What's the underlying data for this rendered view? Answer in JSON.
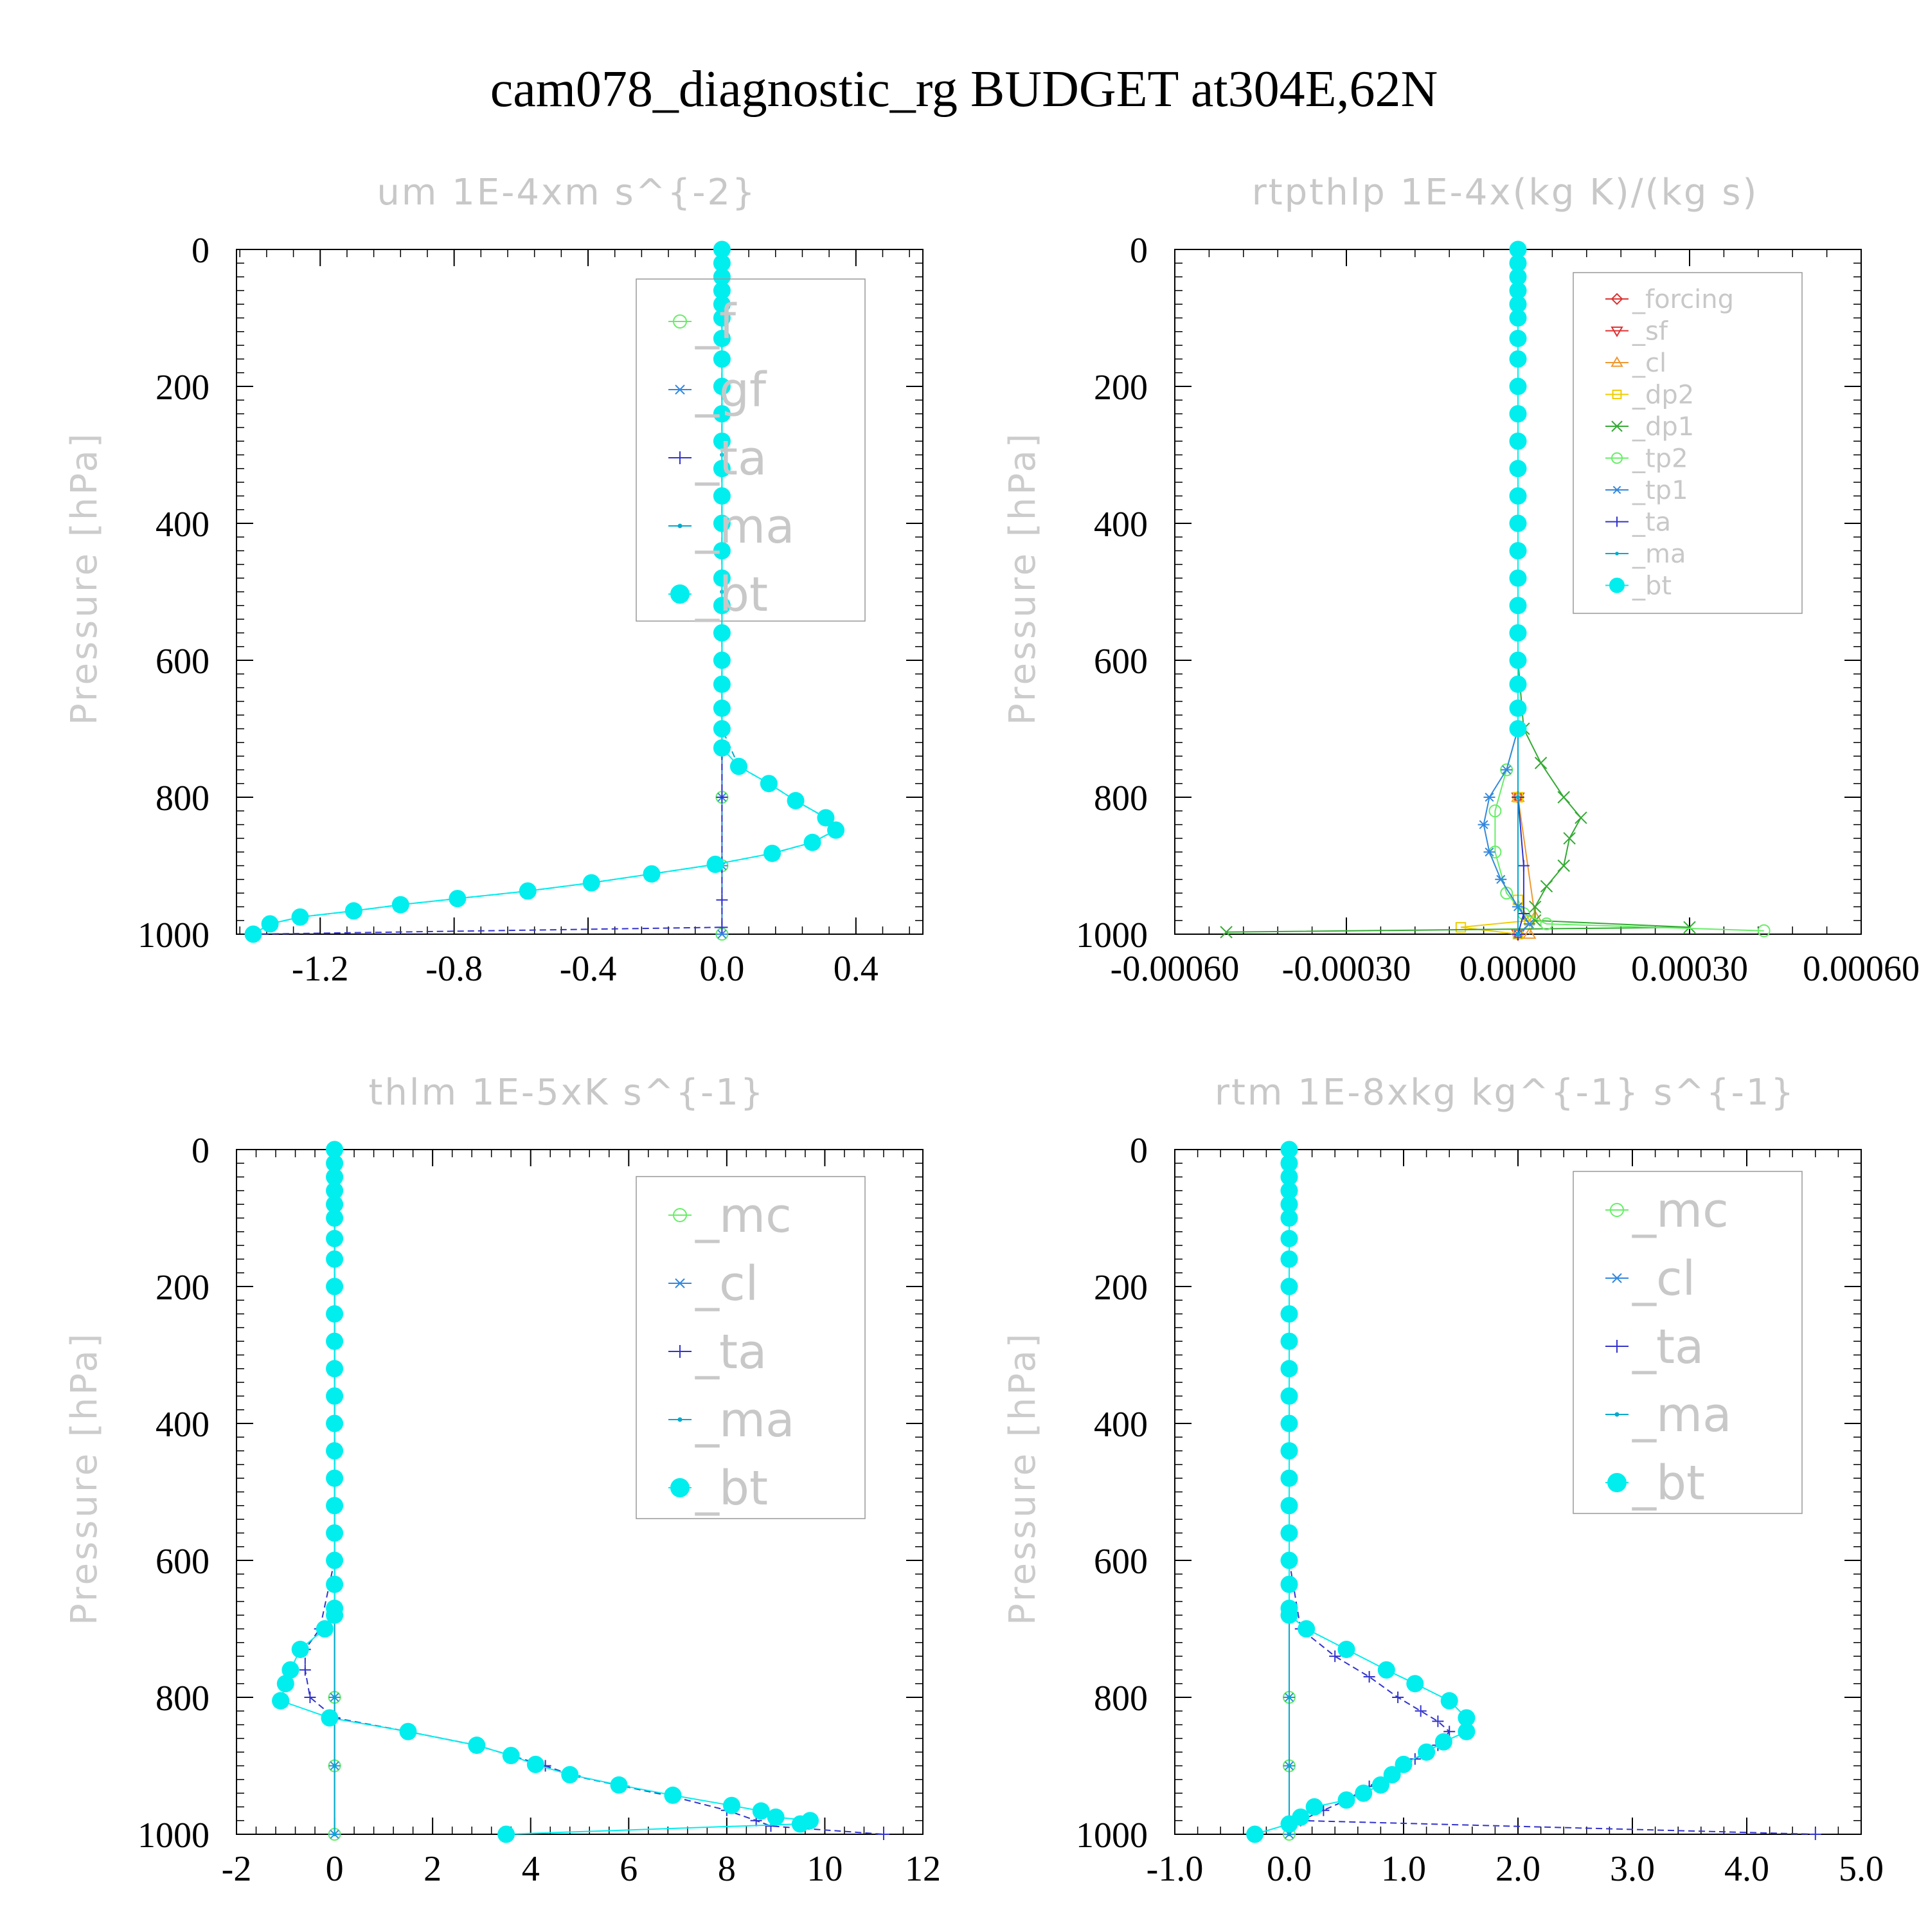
{
  "figure_title": "cam078_diagnostic_rg  BUDGET at304E,62N",
  "chart_data": [
    {
      "type": "line",
      "title": "um   1E-4xm s^{-2}",
      "ylabel": "Pressure [hPa]",
      "xlabel": "",
      "xlim": [
        -1.45,
        0.6
      ],
      "ylim": [
        0,
        1000
      ],
      "y_inverted": true,
      "xticks": [
        -1.2,
        -0.8,
        -0.4,
        0.0,
        0.4
      ],
      "xtick_labels": [
        "-1.2",
        "-0.8",
        "-0.4",
        "0.0",
        "0.4"
      ],
      "yticks": [
        0,
        200,
        400,
        600,
        800,
        1000
      ],
      "legend_position": "top-right",
      "series": [
        {
          "name": "_f",
          "color": "#66ee66",
          "marker": "circle-open",
          "x": [
            0,
            0,
            0,
            0,
            0,
            0,
            0
          ],
          "y": [
            0,
            200,
            400,
            600,
            800,
            900,
            1000
          ]
        },
        {
          "name": "_gf",
          "color": "#3388dd",
          "marker": "asterisk",
          "x": [
            0,
            0,
            0,
            0,
            0,
            0,
            0
          ],
          "y": [
            0,
            200,
            400,
            600,
            800,
            900,
            1000
          ]
        },
        {
          "name": "_ta",
          "color": "#3333cc",
          "marker": "plus",
          "dash": true,
          "x": [
            0,
            0,
            0,
            0,
            0,
            -1.4
          ],
          "y": [
            0,
            400,
            800,
            950,
            990,
            1000
          ]
        },
        {
          "name": "_ma",
          "color": "#00aacc",
          "marker": "dot",
          "dash": true,
          "x": [
            0,
            0,
            0,
            0,
            0,
            0,
            0,
            0,
            0.05,
            0.14,
            0.22,
            0.31,
            0.34,
            0.27,
            0.15,
            -0.02,
            -0.21,
            -0.39,
            -0.58,
            -0.79,
            -0.96,
            -1.1,
            -1.26,
            -1.35,
            -1.4
          ],
          "y": [
            0,
            100,
            200,
            300,
            400,
            500,
            600,
            700,
            755,
            780,
            805,
            830,
            848,
            866,
            882,
            898,
            912,
            925,
            937,
            948,
            957,
            966,
            975,
            985,
            1000
          ]
        },
        {
          "name": "_bt",
          "color": "#00eeee",
          "marker": "filled-circle",
          "x": [
            0,
            0,
            0,
            0,
            0,
            0,
            0,
            0,
            0,
            0,
            0,
            0,
            0,
            0,
            0,
            0,
            0,
            0,
            0,
            0,
            0,
            0,
            0,
            0.05,
            0.14,
            0.22,
            0.31,
            0.34,
            0.27,
            0.15,
            -0.02,
            -0.21,
            -0.39,
            -0.58,
            -0.79,
            -0.96,
            -1.1,
            -1.26,
            -1.35,
            -1.4
          ],
          "y": [
            0,
            20,
            40,
            60,
            80,
            100,
            130,
            160,
            200,
            240,
            280,
            320,
            360,
            400,
            440,
            480,
            520,
            560,
            600,
            635,
            670,
            700,
            728,
            755,
            780,
            805,
            830,
            848,
            866,
            882,
            898,
            912,
            925,
            937,
            948,
            957,
            966,
            975,
            985,
            1000
          ]
        }
      ]
    },
    {
      "type": "line",
      "title": "rtpthlp   1E-4x(kg K)/(kg s)",
      "ylabel": "Pressure [hPa]",
      "xlabel": "",
      "xlim": [
        -0.0006,
        0.0006
      ],
      "ylim": [
        0,
        1000
      ],
      "y_inverted": true,
      "xticks": [
        -0.0006,
        -0.0003,
        0.0,
        0.0003,
        0.0006
      ],
      "xtick_labels": [
        "-0.00060",
        "-0.00030",
        "0.00000",
        "0.00030",
        "0.00060"
      ],
      "yticks": [
        0,
        200,
        400,
        600,
        800,
        1000
      ],
      "legend_position": "top-right",
      "series": [
        {
          "name": "_forcing",
          "color": "#dd3333",
          "marker": "diamond-open",
          "x": [
            0,
            0,
            0,
            0,
            0,
            0
          ],
          "y": [
            0,
            200,
            400,
            600,
            800,
            1000
          ]
        },
        {
          "name": "_sf",
          "color": "#dd3333",
          "marker": "triangle-down-open",
          "x": [
            0,
            0,
            0,
            0,
            0,
            0
          ],
          "y": [
            0,
            200,
            400,
            600,
            800,
            1000
          ]
        },
        {
          "name": "_cl",
          "color": "#ee9933",
          "marker": "triangle-up-open",
          "x": [
            0,
            0,
            0,
            0,
            0,
            3e-05,
            2e-05
          ],
          "y": [
            0,
            200,
            400,
            600,
            800,
            975,
            1000
          ]
        },
        {
          "name": "_dp2",
          "color": "#eecc00",
          "marker": "square-open",
          "x": [
            0,
            0,
            0,
            0,
            2e-05,
            -0.0001,
            0.0
          ],
          "y": [
            0,
            400,
            800,
            950,
            980,
            990,
            1000
          ]
        },
        {
          "name": "_dp1",
          "color": "#33aa33",
          "marker": "x",
          "x": [
            0,
            0,
            0,
            1e-05,
            4e-05,
            8e-05,
            0.00011,
            9e-05,
            8e-05,
            5e-05,
            3e-05,
            3e-05,
            0.0003,
            -0.00051
          ],
          "y": [
            0,
            200,
            600,
            700,
            750,
            800,
            830,
            860,
            900,
            930,
            960,
            980,
            990,
            997
          ]
        },
        {
          "name": "_tp2",
          "color": "#66ee66",
          "marker": "circle-open",
          "x": [
            0,
            0,
            0,
            -2e-05,
            -4e-05,
            -4e-05,
            -2e-05,
            1e-05,
            5e-05,
            0.00043
          ],
          "y": [
            0,
            400,
            700,
            760,
            820,
            880,
            940,
            970,
            985,
            995
          ]
        },
        {
          "name": "_tp1",
          "color": "#3388dd",
          "marker": "asterisk",
          "x": [
            0,
            0,
            0,
            -2e-05,
            -5e-05,
            -6e-05,
            -5e-05,
            -3e-05,
            0.0,
            2e-05,
            0.0
          ],
          "y": [
            0,
            400,
            700,
            760,
            800,
            840,
            880,
            920,
            960,
            985,
            1000
          ]
        },
        {
          "name": "_ta",
          "color": "#3333cc",
          "marker": "plus",
          "x": [
            0,
            0,
            0,
            1e-05,
            1e-05,
            0.0
          ],
          "y": [
            0,
            400,
            800,
            900,
            970,
            1000
          ]
        },
        {
          "name": "_ma",
          "color": "#00aacc",
          "marker": "dot",
          "x": [
            0,
            0,
            0,
            0,
            0,
            0
          ],
          "y": [
            0,
            200,
            400,
            600,
            800,
            1000
          ]
        },
        {
          "name": "_bt",
          "color": "#00eeee",
          "marker": "filled-circle",
          "x": [
            0,
            0,
            0,
            0,
            0,
            0,
            0,
            0,
            0,
            0,
            0,
            0,
            0,
            0,
            0,
            0,
            0,
            0,
            0,
            0,
            0,
            0
          ],
          "y": [
            0,
            20,
            40,
            60,
            80,
            100,
            130,
            160,
            200,
            240,
            280,
            320,
            360,
            400,
            440,
            480,
            520,
            560,
            600,
            635,
            670,
            700
          ]
        }
      ]
    },
    {
      "type": "line",
      "title": "thlm   1E-5xK s^{-1}",
      "ylabel": "Pressure [hPa]",
      "xlabel": "",
      "xlim": [
        -2,
        12
      ],
      "ylim": [
        0,
        1000
      ],
      "y_inverted": true,
      "xticks": [
        -2,
        0,
        2,
        4,
        6,
        8,
        10,
        12
      ],
      "xtick_labels": [
        "-2",
        "0",
        "2",
        "4",
        "6",
        "8",
        "10",
        "12"
      ],
      "yticks": [
        0,
        200,
        400,
        600,
        800,
        1000
      ],
      "legend_position": "top-right",
      "series": [
        {
          "name": "_mc",
          "color": "#66ee66",
          "marker": "circle-open",
          "x": [
            0,
            0,
            0,
            0,
            0,
            0,
            0
          ],
          "y": [
            0,
            200,
            400,
            600,
            800,
            900,
            1000
          ]
        },
        {
          "name": "_cl",
          "color": "#3388dd",
          "marker": "asterisk",
          "x": [
            0,
            0,
            0,
            0,
            0,
            0,
            0
          ],
          "y": [
            0,
            200,
            400,
            600,
            800,
            900,
            1000
          ]
        },
        {
          "name": "_ta",
          "color": "#3333cc",
          "marker": "plus",
          "dash": true,
          "x": [
            0,
            0,
            0,
            0,
            -0.3,
            -0.6,
            -0.6,
            -0.5,
            0.0,
            1.5,
            2.9,
            3.6,
            4.3,
            4.9,
            5.9,
            6.9,
            8.0,
            8.6,
            8.9,
            11.2
          ],
          "y": [
            0,
            200,
            400,
            600,
            700,
            730,
            760,
            800,
            830,
            850,
            870,
            885,
            900,
            915,
            930,
            945,
            965,
            980,
            988,
            1000
          ]
        },
        {
          "name": "_ma",
          "color": "#00aacc",
          "marker": "dot",
          "x": [
            0,
            0,
            0,
            0,
            0,
            0,
            0
          ],
          "y": [
            0,
            200,
            400,
            600,
            800,
            900,
            1000
          ]
        },
        {
          "name": "_bt",
          "color": "#00eeee",
          "marker": "filled-circle",
          "x": [
            0,
            0,
            0,
            0,
            0,
            0,
            0,
            0,
            0,
            0,
            0,
            0,
            0,
            0,
            0,
            0,
            0,
            0,
            0,
            0,
            0,
            0,
            -0.2,
            -0.7,
            -0.9,
            -1.0,
            -1.1,
            -1.1,
            -0.1,
            1.5,
            2.9,
            3.6,
            4.1,
            4.8,
            5.8,
            6.9,
            8.1,
            8.7,
            9.0,
            9.7,
            9.5,
            3.5
          ],
          "y": [
            0,
            20,
            40,
            60,
            80,
            100,
            130,
            160,
            200,
            240,
            280,
            320,
            360,
            400,
            440,
            480,
            520,
            560,
            600,
            635,
            670,
            680,
            700,
            730,
            760,
            780,
            805,
            805,
            830,
            850,
            870,
            885,
            898,
            913,
            928,
            943,
            958,
            966,
            975,
            980,
            985,
            1000
          ]
        }
      ]
    },
    {
      "type": "line",
      "title": "rtm   1E-8xkg kg^{-1} s^{-1}",
      "ylabel": "Pressure [hPa]",
      "xlabel": "",
      "xlim": [
        -1.0,
        5.0
      ],
      "ylim": [
        0,
        1000
      ],
      "y_inverted": true,
      "xticks": [
        -1.0,
        0.0,
        1.0,
        2.0,
        3.0,
        4.0,
        5.0
      ],
      "xtick_labels": [
        "-1.0",
        "0.0",
        "1.0",
        "2.0",
        "3.0",
        "4.0",
        "5.0"
      ],
      "yticks": [
        0,
        200,
        400,
        600,
        800,
        1000
      ],
      "legend_position": "top-right",
      "series": [
        {
          "name": "_mc",
          "color": "#66ee66",
          "marker": "circle-open",
          "x": [
            0,
            0,
            0,
            0,
            0,
            0,
            0
          ],
          "y": [
            0,
            200,
            400,
            600,
            800,
            900,
            1000
          ]
        },
        {
          "name": "_cl",
          "color": "#3388dd",
          "marker": "asterisk",
          "x": [
            0,
            0,
            0,
            0,
            0,
            0,
            0
          ],
          "y": [
            0,
            200,
            400,
            600,
            800,
            900,
            1000
          ]
        },
        {
          "name": "_ta",
          "color": "#3333cc",
          "marker": "plus",
          "dash": true,
          "x": [
            0,
            0,
            0,
            0,
            0.1,
            0.4,
            0.7,
            0.95,
            1.15,
            1.3,
            1.4,
            1.3,
            1.1,
            0.9,
            0.7,
            0.5,
            0.3,
            0.1,
            4.6
          ],
          "y": [
            0,
            200,
            400,
            600,
            700,
            740,
            770,
            800,
            820,
            835,
            850,
            870,
            890,
            910,
            930,
            950,
            965,
            980,
            1000
          ]
        },
        {
          "name": "_ma",
          "color": "#00aacc",
          "marker": "dot",
          "x": [
            0,
            0,
            0,
            0,
            0,
            0,
            0
          ],
          "y": [
            0,
            200,
            400,
            600,
            800,
            900,
            1000
          ]
        },
        {
          "name": "_bt",
          "color": "#00eeee",
          "marker": "filled-circle",
          "x": [
            0,
            0,
            0,
            0,
            0,
            0,
            0,
            0,
            0,
            0,
            0,
            0,
            0,
            0,
            0,
            0,
            0,
            0,
            0,
            0,
            0,
            0,
            0.15,
            0.5,
            0.85,
            1.1,
            1.4,
            1.55,
            1.55,
            1.35,
            1.2,
            1.0,
            0.9,
            0.8,
            0.65,
            0.5,
            0.22,
            0.1,
            0.0,
            -0.3
          ],
          "y": [
            0,
            20,
            40,
            60,
            80,
            100,
            130,
            160,
            200,
            240,
            280,
            320,
            360,
            400,
            440,
            480,
            520,
            560,
            600,
            635,
            670,
            680,
            700,
            730,
            760,
            780,
            805,
            830,
            850,
            865,
            880,
            898,
            913,
            928,
            940,
            950,
            960,
            975,
            985,
            1000
          ]
        }
      ]
    }
  ]
}
